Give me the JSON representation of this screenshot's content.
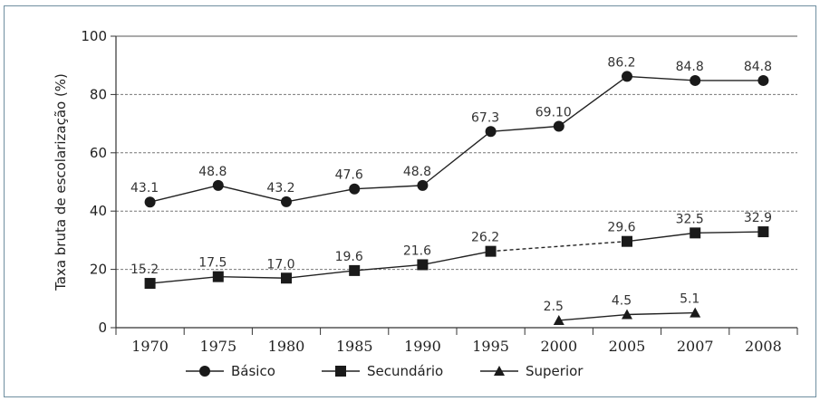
{
  "chart_data": {
    "type": "line",
    "ylabel": "Taxa bruta de escolarização (%)",
    "xlabel": "",
    "ylim": [
      0,
      100
    ],
    "yticks": [
      "0",
      "20",
      "40",
      "60",
      "80",
      "100"
    ],
    "categories": [
      "1970",
      "1975",
      "1980",
      "1985",
      "1990",
      "1995",
      "2000",
      "2005",
      "2007",
      "2008"
    ],
    "grid": "horizontal dashed",
    "legend_position": "bottom",
    "series": [
      {
        "name": "Básico",
        "marker": "circle",
        "values": [
          43.1,
          48.8,
          43.2,
          47.6,
          48.8,
          67.3,
          69.1,
          86.2,
          84.8,
          84.8
        ],
        "labels": [
          "43.1",
          "48.8",
          "43.2",
          "47.6",
          "48.8",
          "67.3",
          "69.10",
          "86.2",
          "84.8",
          "84.8"
        ]
      },
      {
        "name": "Secundário",
        "marker": "square",
        "values": [
          15.2,
          17.5,
          17.0,
          19.6,
          21.6,
          26.2,
          null,
          29.6,
          32.5,
          32.9
        ],
        "labels": [
          "15.2",
          "17.5",
          "17.0",
          "19.6",
          "21.6",
          "26.2",
          "",
          "29.6",
          "32.5",
          "32.9"
        ],
        "dashed_segment": [
          "1995",
          "2005"
        ]
      },
      {
        "name": "Superior",
        "marker": "triangle",
        "values": [
          null,
          null,
          null,
          null,
          null,
          null,
          2.5,
          4.5,
          5.1,
          null
        ],
        "labels": [
          "",
          "",
          "",
          "",
          "",
          "",
          "2.5",
          "4.5",
          "5.1",
          ""
        ]
      }
    ]
  }
}
